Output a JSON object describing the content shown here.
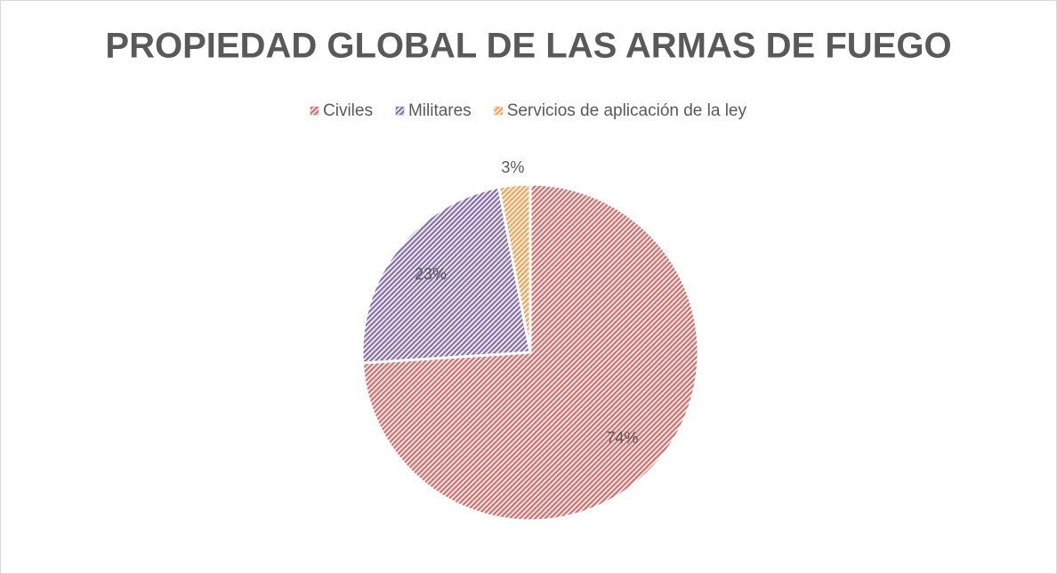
{
  "chart_data": {
    "type": "pie",
    "title": "PROPIEDAD GLOBAL DE LAS ARMAS DE FUEGO",
    "categories": [
      "Civiles",
      "Militares",
      "Servicios de aplicación de la ley"
    ],
    "values": [
      74,
      23,
      3
    ],
    "value_labels": [
      "74%",
      "23%",
      "3%"
    ],
    "colors": [
      "#d9716f",
      "#8b72b0",
      "#f5a55a"
    ],
    "legend": "top"
  }
}
